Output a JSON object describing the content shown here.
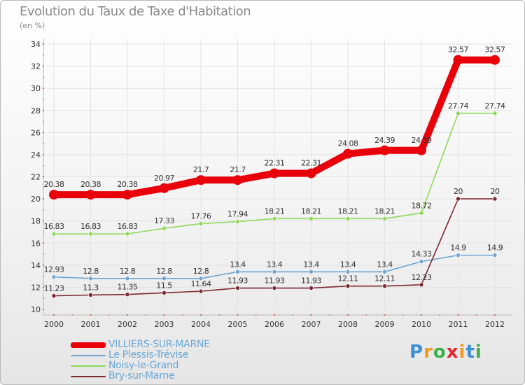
{
  "title": "Evolution du Taux de Taxe d'Habitation",
  "unit_label": "(en %)",
  "brand": {
    "text": "Proxiti",
    "letters": [
      "P",
      "r",
      "o",
      "x",
      "i",
      "t",
      "i"
    ],
    "letter_colors": [
      "#3c8fd6",
      "#f39a1f",
      "#3bb14a",
      "#e2262d",
      "#f39a1f",
      "#3c8fd6",
      "#3bb14a"
    ]
  },
  "chart_data": {
    "type": "line",
    "title": "Evolution du Taux de Taxe d'Habitation",
    "ylabel": "(en %)",
    "xlabel": "",
    "x": [
      "2000",
      "2001",
      "2002",
      "2003",
      "2004",
      "2005",
      "2006",
      "2007",
      "2008",
      "2009",
      "2010",
      "2011",
      "2012"
    ],
    "ylim": [
      10,
      34
    ],
    "yticks": [
      10,
      12,
      14,
      16,
      18,
      20,
      22,
      24,
      26,
      28,
      30,
      32,
      34
    ],
    "grid": true,
    "legend_position": "bottom-left",
    "series": [
      {
        "name": "VILLIERS-SUR-MARNE",
        "color": "#e8000b",
        "emphasis": true,
        "values": [
          20.38,
          20.38,
          20.38,
          20.97,
          21.7,
          21.7,
          22.31,
          22.31,
          24.08,
          24.39,
          24.39,
          32.57,
          32.57
        ],
        "labels": [
          "20.38",
          "20.38",
          "20.38",
          "20.97",
          "21.7",
          "21.7",
          "22.31",
          "22.31",
          "24.08",
          "24.39",
          "24.39",
          "32.57",
          "32.57"
        ]
      },
      {
        "name": "Le Plessis-Trévise",
        "color": "#6fa5d2",
        "values": [
          12.93,
          12.8,
          12.8,
          12.8,
          12.8,
          13.4,
          13.4,
          13.4,
          13.4,
          13.4,
          14.33,
          14.9,
          14.9
        ],
        "labels": [
          "12.93",
          "12.8",
          "12.8",
          "12.8",
          "12.8",
          "13.4",
          "13.4",
          "13.4",
          "13.4",
          "13.4",
          "14.33",
          "14.9",
          "14.9"
        ]
      },
      {
        "name": "Noisy-le-Grand",
        "color": "#8ed85a",
        "values": [
          16.83,
          16.83,
          16.83,
          17.33,
          17.76,
          17.94,
          18.21,
          18.21,
          18.21,
          18.21,
          18.72,
          27.74,
          27.74
        ],
        "labels": [
          "16.83",
          "16.83",
          "16.83",
          "17.33",
          "17.76",
          "17.94",
          "18.21",
          "18.21",
          "18.21",
          "18.21",
          "18.72",
          "27.74",
          "27.74"
        ]
      },
      {
        "name": "Bry-sur-Marne",
        "color": "#7b2a32",
        "values": [
          11.23,
          11.3,
          11.35,
          11.5,
          11.64,
          11.93,
          11.93,
          11.93,
          12.11,
          12.11,
          12.23,
          20,
          20
        ],
        "labels": [
          "11.23",
          "11.3",
          "11.35",
          "11.5",
          "11.64",
          "11.93",
          "11.93",
          "11.93",
          "12.11",
          "12.11",
          "12.23",
          "20",
          "20"
        ]
      }
    ]
  }
}
